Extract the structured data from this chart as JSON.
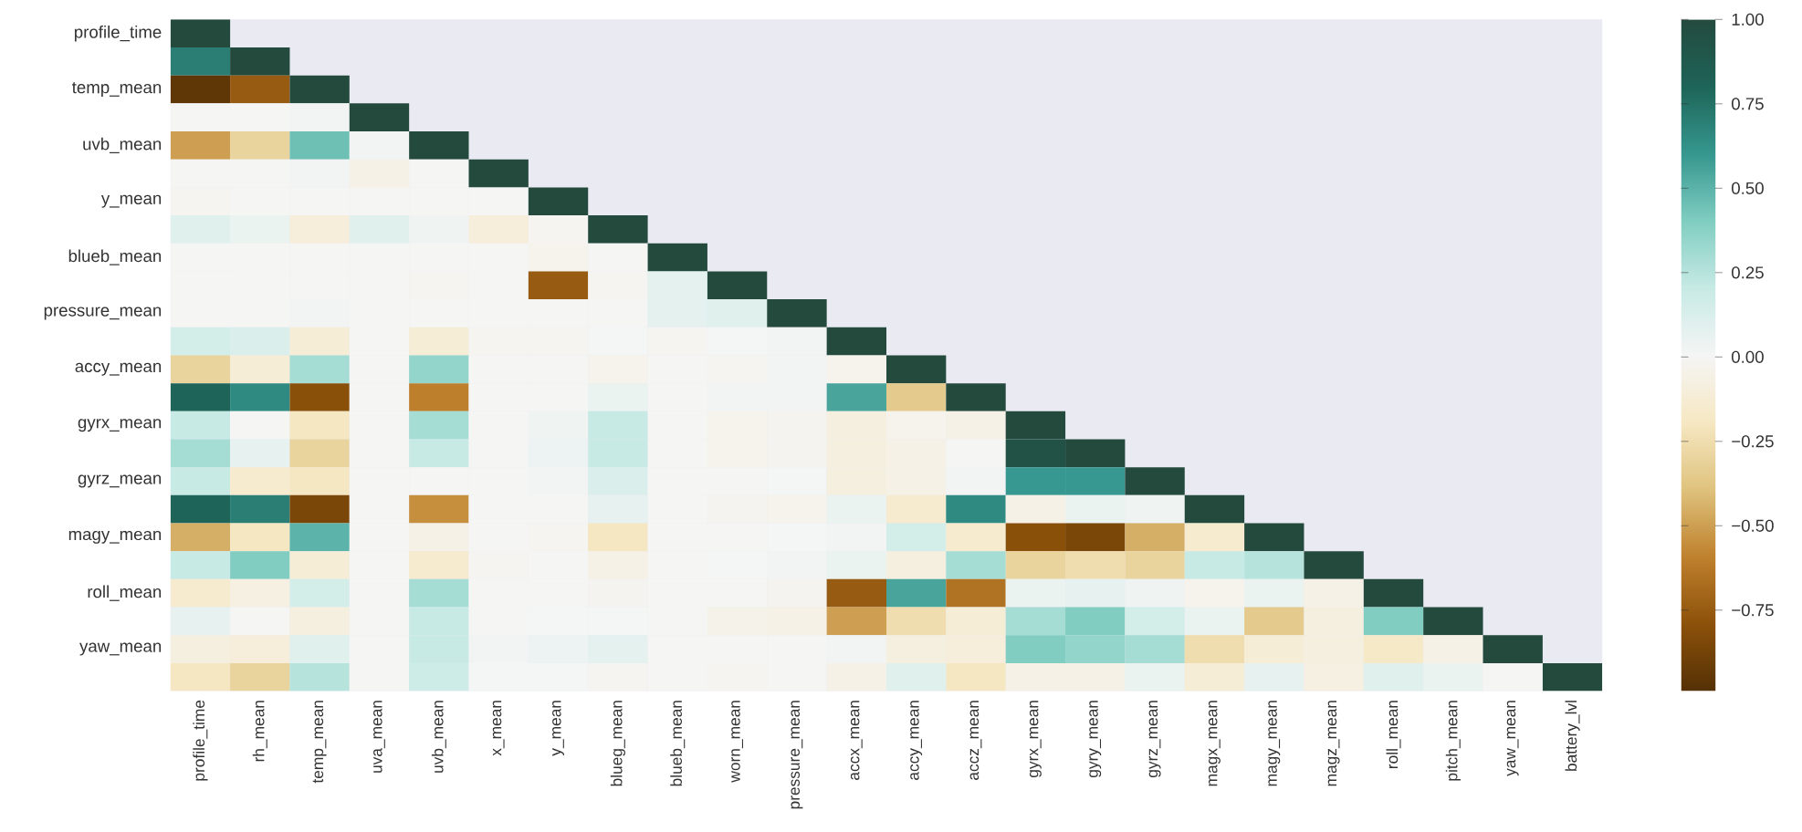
{
  "chart_data": {
    "type": "heatmap",
    "categories": [
      "profile_time",
      "rh_mean",
      "temp_mean",
      "uva_mean",
      "uvb_mean",
      "x_mean",
      "y_mean",
      "blueg_mean",
      "blueb_mean",
      "worn_mean",
      "pressure_mean",
      "accx_mean",
      "accy_mean",
      "accz_mean",
      "gyrx_mean",
      "gyry_mean",
      "gyrz_mean",
      "magx_mean",
      "magy_mean",
      "magz_mean",
      "roll_mean",
      "pitch_mean",
      "yaw_mean",
      "battery_lvl"
    ],
    "y_categories": [
      "profile_time",
      null,
      "temp_mean",
      null,
      "uvb_mean",
      null,
      "y_mean",
      null,
      "blueb_mean",
      null,
      "pressure_mean",
      null,
      "accy_mean",
      null,
      "gyrx_mean",
      null,
      "gyrz_mean",
      null,
      "magy_mean",
      null,
      "roll_mean",
      null,
      "yaw_mean",
      null
    ],
    "cells": [
      [
        1,
        null,
        null,
        null,
        null,
        null,
        null,
        null,
        null,
        null,
        null,
        null,
        null,
        null,
        null,
        null,
        null,
        null,
        null,
        null,
        null,
        null,
        null,
        null
      ],
      [
        0.7,
        1,
        null,
        null,
        null,
        null,
        null,
        null,
        null,
        null,
        null,
        null,
        null,
        null,
        null,
        null,
        null,
        null,
        null,
        null,
        null,
        null,
        null,
        null
      ],
      [
        -0.95,
        -0.75,
        1,
        null,
        null,
        null,
        null,
        null,
        null,
        null,
        null,
        null,
        null,
        null,
        null,
        null,
        null,
        null,
        null,
        null,
        null,
        null,
        null,
        null
      ],
      [
        0.0,
        0.0,
        0.02,
        1,
        null,
        null,
        null,
        null,
        null,
        null,
        null,
        null,
        null,
        null,
        null,
        null,
        null,
        null,
        null,
        null,
        null,
        null,
        null,
        null
      ],
      [
        -0.5,
        -0.3,
        0.45,
        0.02,
        1,
        null,
        null,
        null,
        null,
        null,
        null,
        null,
        null,
        null,
        null,
        null,
        null,
        null,
        null,
        null,
        null,
        null,
        null,
        null
      ],
      [
        0.0,
        0.0,
        0.02,
        -0.05,
        0.0,
        1,
        null,
        null,
        null,
        null,
        null,
        null,
        null,
        null,
        null,
        null,
        null,
        null,
        null,
        null,
        null,
        null,
        null,
        null
      ],
      [
        -0.01,
        0.0,
        0.0,
        0.0,
        0.0,
        0.0,
        1,
        null,
        null,
        null,
        null,
        null,
        null,
        null,
        null,
        null,
        null,
        null,
        null,
        null,
        null,
        null,
        null,
        null
      ],
      [
        0.1,
        0.05,
        -0.1,
        0.1,
        0.03,
        -0.1,
        -0.01,
        1,
        null,
        null,
        null,
        null,
        null,
        null,
        null,
        null,
        null,
        null,
        null,
        null,
        null,
        null,
        null,
        null
      ],
      [
        0.0,
        0.0,
        0.0,
        0.0,
        0.0,
        0.0,
        -0.03,
        0.0,
        1,
        null,
        null,
        null,
        null,
        null,
        null,
        null,
        null,
        null,
        null,
        null,
        null,
        null,
        null,
        null
      ],
      [
        0.0,
        0.0,
        0.0,
        0.0,
        -0.01,
        0.0,
        -0.75,
        -0.01,
        0.08,
        1,
        null,
        null,
        null,
        null,
        null,
        null,
        null,
        null,
        null,
        null,
        null,
        null,
        null,
        null
      ],
      [
        0.0,
        0.0,
        0.02,
        0.0,
        0.0,
        0.0,
        0.0,
        0.0,
        0.08,
        0.1,
        1,
        null,
        null,
        null,
        null,
        null,
        null,
        null,
        null,
        null,
        null,
        null,
        null,
        null
      ],
      [
        0.15,
        0.12,
        -0.12,
        0.0,
        -0.12,
        -0.01,
        -0.01,
        0.01,
        -0.01,
        0.01,
        0.02,
        1,
        null,
        null,
        null,
        null,
        null,
        null,
        null,
        null,
        null,
        null,
        null,
        null
      ],
      [
        -0.3,
        -0.12,
        0.3,
        0.0,
        0.35,
        0.0,
        0.0,
        -0.03,
        0.0,
        -0.01,
        0.02,
        -0.03,
        1,
        null,
        null,
        null,
        null,
        null,
        null,
        null,
        null,
        null,
        null,
        null
      ],
      [
        0.8,
        0.65,
        -0.8,
        0.0,
        -0.6,
        0.0,
        0.0,
        0.05,
        0.0,
        0.02,
        0.02,
        0.55,
        -0.35,
        1,
        null,
        null,
        null,
        null,
        null,
        null,
        null,
        null,
        null,
        null
      ],
      [
        0.2,
        0.0,
        -0.2,
        0.0,
        0.3,
        0.0,
        0.03,
        0.2,
        0.0,
        -0.03,
        -0.02,
        -0.08,
        -0.03,
        -0.05,
        1,
        null,
        null,
        null,
        null,
        null,
        null,
        null,
        null,
        null
      ],
      [
        0.3,
        0.07,
        -0.3,
        0.0,
        0.2,
        0.0,
        0.04,
        0.2,
        0.0,
        -0.03,
        -0.02,
        -0.08,
        -0.05,
        0.0,
        0.95,
        1,
        null,
        null,
        null,
        null,
        null,
        null,
        null,
        null
      ],
      [
        0.2,
        -0.15,
        -0.2,
        0.0,
        0.0,
        0.0,
        0.02,
        0.12,
        0.0,
        0.0,
        0.01,
        -0.08,
        -0.05,
        0.02,
        0.6,
        0.6,
        1,
        null,
        null,
        null,
        null,
        null,
        null,
        null
      ],
      [
        0.8,
        0.7,
        -0.85,
        0.0,
        -0.55,
        0.0,
        0.0,
        0.07,
        0.0,
        -0.02,
        -0.03,
        0.05,
        -0.15,
        0.65,
        -0.05,
        0.05,
        0.03,
        1,
        null,
        null,
        null,
        null,
        null,
        null
      ],
      [
        -0.45,
        -0.2,
        0.5,
        0.0,
        -0.05,
        0.0,
        -0.01,
        -0.2,
        0.0,
        0.0,
        0.01,
        0.02,
        0.15,
        -0.15,
        -0.8,
        -0.85,
        -0.45,
        -0.15,
        1,
        null,
        null,
        null,
        null,
        null
      ],
      [
        0.2,
        0.4,
        -0.12,
        0.0,
        -0.15,
        -0.01,
        0.0,
        -0.05,
        0.0,
        0.01,
        0.02,
        0.05,
        -0.08,
        0.3,
        -0.3,
        -0.25,
        -0.3,
        0.2,
        0.25,
        1,
        null,
        null,
        null,
        null
      ],
      [
        -0.15,
        -0.07,
        0.15,
        0.0,
        0.3,
        0.0,
        0.0,
        -0.02,
        0.0,
        0.0,
        -0.02,
        -0.75,
        0.55,
        -0.65,
        0.05,
        0.07,
        0.03,
        -0.03,
        0.05,
        -0.05,
        1,
        null,
        null,
        null
      ],
      [
        0.07,
        0.0,
        -0.08,
        0.0,
        0.2,
        0.0,
        0.01,
        0.01,
        0.0,
        -0.04,
        -0.05,
        -0.5,
        -0.25,
        -0.12,
        0.3,
        0.4,
        0.15,
        0.05,
        -0.35,
        -0.08,
        0.4,
        1,
        null,
        null
      ],
      [
        -0.08,
        -0.1,
        0.1,
        0.0,
        0.2,
        0.02,
        0.04,
        0.08,
        0.0,
        0.0,
        0.0,
        0.02,
        -0.08,
        -0.1,
        0.4,
        0.35,
        0.3,
        -0.25,
        -0.12,
        -0.08,
        -0.18,
        -0.05,
        1,
        null
      ],
      [
        -0.2,
        -0.3,
        0.25,
        0.0,
        0.18,
        0.01,
        0.01,
        -0.01,
        0.0,
        -0.01,
        0.0,
        -0.05,
        0.1,
        -0.2,
        -0.05,
        -0.05,
        0.05,
        -0.12,
        0.07,
        -0.07,
        0.1,
        0.05,
        0.0,
        1
      ]
    ],
    "clim": [
      -0.99,
      1
    ],
    "cticks": [
      {
        "value": -0.75,
        "label": "−0.75"
      },
      {
        "value": -0.5,
        "label": "−0.50"
      },
      {
        "value": -0.25,
        "label": "−0.25"
      },
      {
        "value": 0,
        "label": "0.00"
      },
      {
        "value": 0.25,
        "label": "0.25"
      },
      {
        "value": 0.5,
        "label": "0.50"
      },
      {
        "value": 0.75,
        "label": "0.75"
      },
      {
        "value": 1,
        "label": "1.00"
      }
    ]
  }
}
